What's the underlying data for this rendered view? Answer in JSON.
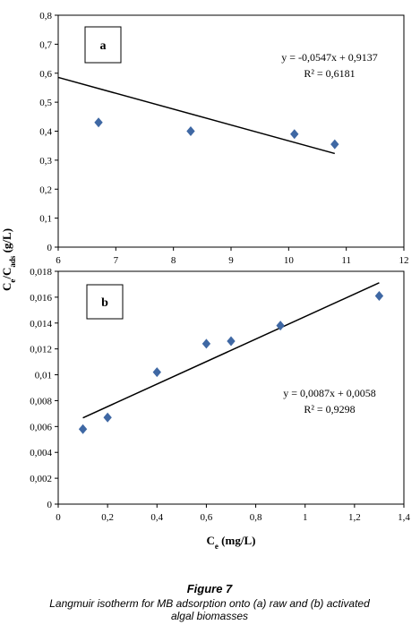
{
  "chart_data": [
    {
      "type": "scatter",
      "panel_label": "a",
      "color": "#3f68a4",
      "x": [
        6.7,
        8.3,
        10.1,
        10.8
      ],
      "values": [
        0.43,
        0.4,
        0.39,
        0.355
      ],
      "xlim": [
        6,
        12
      ],
      "xticks": [
        6,
        7,
        8,
        9,
        10,
        11,
        12
      ],
      "ylim": [
        0,
        0.8
      ],
      "yticks": [
        0,
        {
          "value": 0.1,
          "label": "0,1"
        },
        {
          "value": 0.2,
          "label": "0,2"
        },
        {
          "value": 0.3,
          "label": "0,3"
        },
        {
          "value": 0.4,
          "label": "0,4"
        },
        {
          "value": 0.5,
          "label": "0,5"
        },
        {
          "value": 0.6,
          "label": "0,6"
        },
        {
          "value": 0.7,
          "label": "0,7"
        },
        {
          "value": 0.8,
          "label": "0,8"
        }
      ],
      "fit": {
        "equation": "y = -0,0547x + 0,9137",
        "r2": "R² = 0,6181",
        "slope": -0.0547,
        "intercept": 0.9137,
        "x_range": [
          6,
          10.8
        ]
      }
    },
    {
      "type": "scatter",
      "panel_label": "b",
      "color": "#3f68a4",
      "x": [
        0.1,
        0.2,
        0.4,
        0.6,
        0.7,
        0.9,
        1.3
      ],
      "values": [
        0.0058,
        0.0067,
        0.0102,
        0.0124,
        0.0126,
        0.0138,
        0.0161
      ],
      "xlim": [
        0,
        1.4
      ],
      "xticks": [
        0,
        {
          "value": 0.2,
          "label": "0,2"
        },
        {
          "value": 0.4,
          "label": "0,4"
        },
        {
          "value": 0.6,
          "label": "0,6"
        },
        {
          "value": 0.8,
          "label": "0,8"
        },
        1,
        {
          "value": 1.2,
          "label": "1,2"
        },
        {
          "value": 1.4,
          "label": "1,4"
        }
      ],
      "ylim": [
        0,
        0.018
      ],
      "yticks": [
        0,
        {
          "value": 0.002,
          "label": "0,002"
        },
        {
          "value": 0.004,
          "label": "0,004"
        },
        {
          "value": 0.006,
          "label": "0,006"
        },
        {
          "value": 0.008,
          "label": "0,008"
        },
        {
          "value": 0.01,
          "label": "0,01"
        },
        {
          "value": 0.012,
          "label": "0,012"
        },
        {
          "value": 0.014,
          "label": "0,014"
        },
        {
          "value": 0.016,
          "label": "0,016"
        },
        {
          "value": 0.018,
          "label": "0,018"
        }
      ],
      "fit": {
        "equation": "y = 0,0087x + 0,0058",
        "r2": "R² = 0,9298",
        "slope": 0.0087,
        "intercept": 0.0058,
        "x_range": [
          0.1,
          1.3
        ]
      }
    }
  ],
  "y_title": [
    "C",
    "e",
    "/C",
    "ads",
    " (g/L)"
  ],
  "x_title": [
    "C",
    "e",
    " (mg/L)"
  ],
  "figure": {
    "label": "Figure 7",
    "caption": [
      "Langmuir isotherm for MB adsorption onto (a) raw and (b) activated",
      "algal biomasses"
    ]
  }
}
